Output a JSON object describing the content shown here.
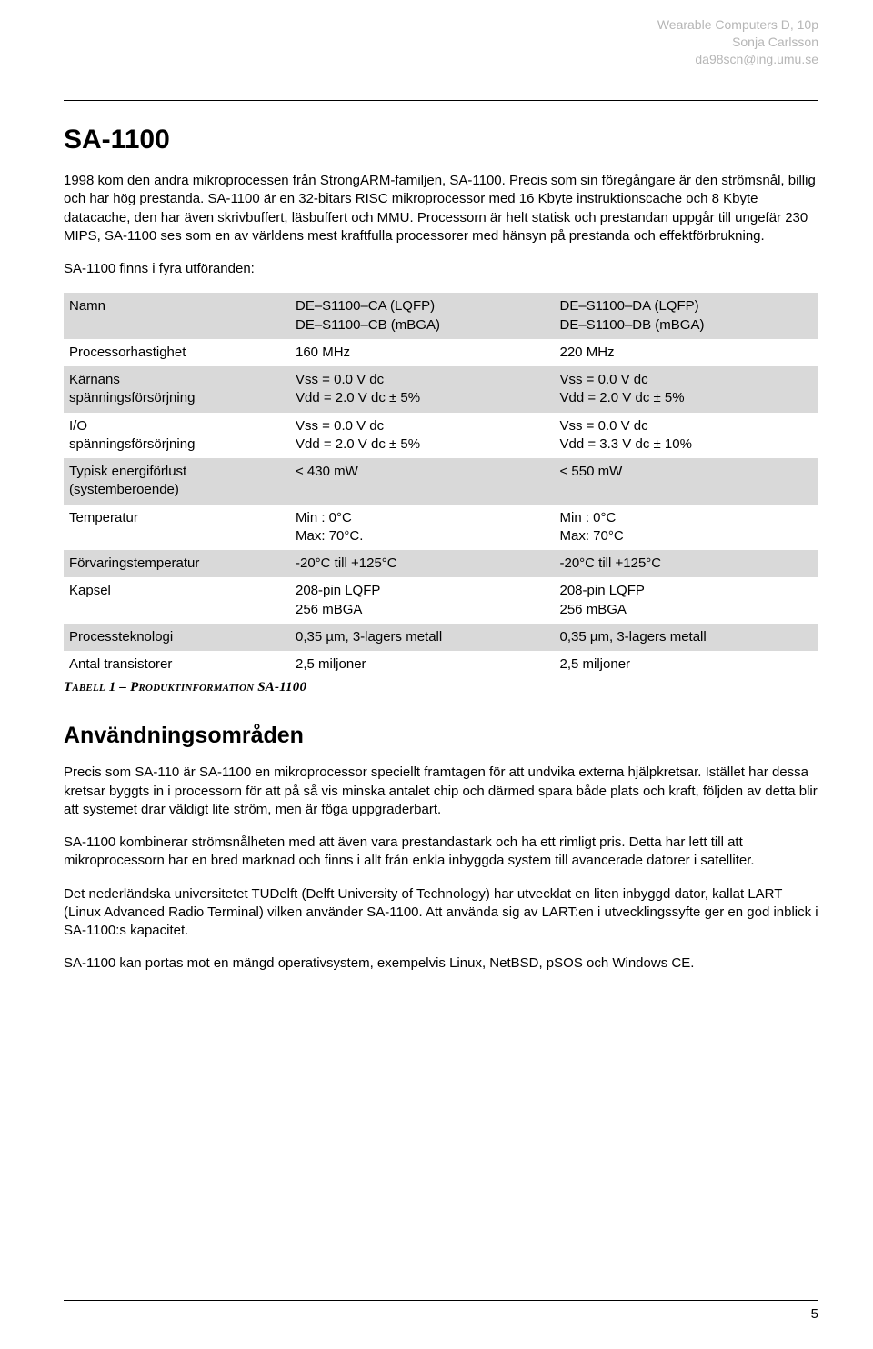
{
  "header": {
    "line1": "Wearable Computers D, 10p",
    "line2": "Sonja Carlsson",
    "line3": "da98scn@ing.umu.se"
  },
  "title": "SA-1100",
  "para1": "1998 kom den andra mikroprocessen från StrongARM-familjen, SA-1100. Precis som sin föregångare är den strömsnål, billig och har hög prestanda. SA-1100 är en 32-bitars RISC mikroprocessor med 16 Kbyte instruktionscache och 8 Kbyte datacache, den har även skrivbuffert, läsbuffert och MMU. Processorn är helt statisk och prestandan uppgår till ungefär 230 MIPS, SA-1100 ses som en av världens mest kraftfulla processorer med hänsyn på prestanda och effektförbrukning.",
  "para2": "SA-1100 finns i fyra utföranden:",
  "tableRows": [
    {
      "shade": true,
      "c0": "Namn",
      "c1": "DE–S1100–CA (LQFP)\nDE–S1100–CB (mBGA)",
      "c2": "DE–S1100–DA (LQFP)\nDE–S1100–DB (mBGA)"
    },
    {
      "shade": false,
      "c0": "Processorhastighet",
      "c1": "160 MHz",
      "c2": "220 MHz"
    },
    {
      "shade": true,
      "c0": "Kärnans\nspänningsförsörjning",
      "c1": "Vss = 0.0 V dc\nVdd = 2.0 V dc ± 5%",
      "c2": "Vss = 0.0 V dc\nVdd = 2.0 V dc ± 5%"
    },
    {
      "shade": false,
      "c0": "I/O\nspänningsförsörjning",
      "c1": "Vss = 0.0 V dc\nVdd = 2.0 V dc ± 5%",
      "c2": "Vss = 0.0 V dc\nVdd = 3.3 V dc ± 10%"
    },
    {
      "shade": true,
      "c0": "Typisk energiförlust\n(systemberoende)",
      "c1": "< 430 mW",
      "c2": "< 550 mW"
    },
    {
      "shade": false,
      "c0": "Temperatur",
      "c1": "Min : 0°C\nMax: 70°C.",
      "c2": "Min : 0°C\nMax: 70°C"
    },
    {
      "shade": true,
      "c0": "Förvaringstemperatur",
      "c1": "-20°C till +125°C",
      "c2": "-20°C till +125°C"
    },
    {
      "shade": false,
      "c0": "Kapsel",
      "c1": "208-pin LQFP\n256 mBGA",
      "c2": "208-pin LQFP\n256 mBGA"
    },
    {
      "shade": true,
      "c0": "Processteknologi",
      "c1": "0,35 µm, 3-lagers metall",
      "c2": "0,35 µm, 3-lagers metall"
    },
    {
      "shade": false,
      "c0": "Antal transistorer",
      "c1": "2,5 miljoner",
      "c2": "2,5 miljoner"
    }
  ],
  "caption": {
    "label": "Tabell 1 – ",
    "rest": "Produktinformation SA-1100"
  },
  "h2": "Användningsområden",
  "para3": "Precis som SA-110 är SA-1100 en mikroprocessor speciellt framtagen för att undvika externa hjälpkretsar. Istället har dessa kretsar byggts in i processorn för att på så vis minska antalet chip och därmed spara både plats och kraft, följden av detta blir att systemet drar väldigt lite ström, men är föga uppgraderbart.",
  "para4": "SA-1100 kombinerar strömsnålheten med att även vara prestandastark och ha ett rimligt pris. Detta har lett till att mikroprocessorn har en bred marknad och finns i allt från enkla inbyggda system till avancerade datorer i satelliter.",
  "para5": "Det nederländska universitetet TUDelft (Delft University of Technology) har utvecklat en liten inbyggd dator, kallat LART (Linux Advanced Radio Terminal) vilken använder SA-1100. Att använda sig av LART:en i utvecklingssyfte ger en god inblick i SA-1100:s kapacitet.",
  "para6": "SA-1100 kan portas mot en mängd operativsystem, exempelvis Linux, NetBSD, pSOS och Windows CE.",
  "pageNumber": "5"
}
